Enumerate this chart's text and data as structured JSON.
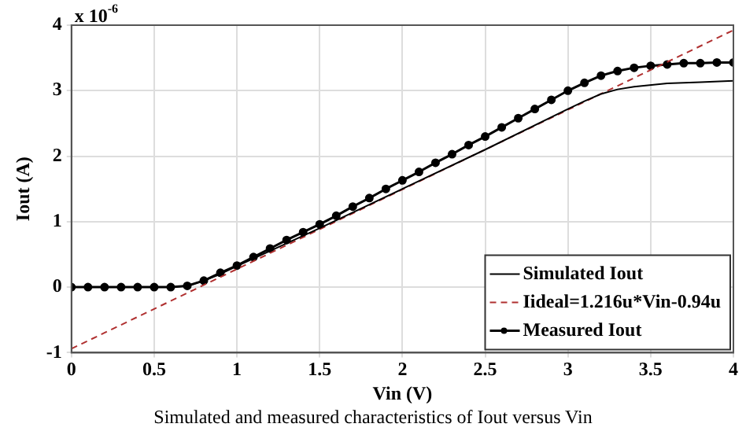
{
  "chart_data": {
    "type": "line",
    "xlabel": "Vin (V)",
    "ylabel": "Iout (A)",
    "annotations": [
      "x 10$^{-6}$",
      "Simulated and measured characteristics of Iout versus Vin"
    ],
    "xlim": [
      0,
      4
    ],
    "xticks": [
      0,
      0.5,
      1,
      1.5,
      2,
      2.5,
      3,
      3.5,
      4
    ],
    "ylim": [
      -1,
      4
    ],
    "yticks": [
      -1,
      0,
      1,
      2,
      3,
      4
    ],
    "grid": true,
    "legend": "bottom right",
    "series": [
      {
        "name": "Simulated Iout",
        "color": "#000000",
        "marker": "none",
        "line_style": "solid",
        "x": [
          0,
          0.6,
          0.7,
          0.8,
          0.9,
          1.0,
          1.5,
          2.0,
          2.5,
          3.0,
          3.1,
          3.2,
          3.3,
          3.4,
          3.6,
          3.8,
          4.0
        ],
        "values": [
          0,
          0,
          0.02,
          0.1,
          0.2,
          0.32,
          0.9,
          1.5,
          2.1,
          2.72,
          2.84,
          2.95,
          3.02,
          3.06,
          3.11,
          3.13,
          3.15
        ]
      },
      {
        "name": "Iideal=1.216u*Vin-0.94u",
        "color": "#b03030",
        "marker": "none",
        "line_style": "dashed",
        "x": [
          0,
          4
        ],
        "values": [
          -0.94,
          3.924
        ]
      },
      {
        "name": "Measured Iout",
        "color": "#000000",
        "marker": "circle",
        "line_style": "solid",
        "x": [
          0,
          0.1,
          0.2,
          0.3,
          0.4,
          0.5,
          0.6,
          0.7,
          0.8,
          0.9,
          1.0,
          1.1,
          1.2,
          1.3,
          1.4,
          1.5,
          1.6,
          1.7,
          1.8,
          1.9,
          2.0,
          2.1,
          2.2,
          2.3,
          2.4,
          2.5,
          2.6,
          2.7,
          2.8,
          2.9,
          3.0,
          3.1,
          3.2,
          3.3,
          3.4,
          3.5,
          3.6,
          3.7,
          3.8,
          3.9,
          4.0
        ],
        "values": [
          0,
          0,
          0,
          0,
          0,
          0,
          0,
          0.02,
          0.1,
          0.22,
          0.33,
          0.46,
          0.59,
          0.72,
          0.84,
          0.96,
          1.09,
          1.23,
          1.36,
          1.5,
          1.63,
          1.76,
          1.9,
          2.03,
          2.17,
          2.3,
          2.44,
          2.58,
          2.72,
          2.86,
          3.0,
          3.12,
          3.23,
          3.3,
          3.35,
          3.38,
          3.4,
          3.42,
          3.42,
          3.43,
          3.43
        ]
      }
    ]
  }
}
